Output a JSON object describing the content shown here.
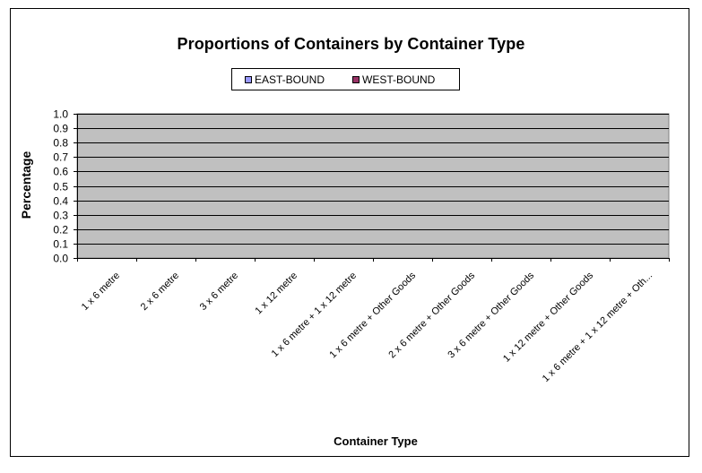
{
  "chart_data": {
    "type": "bar",
    "title": "Proportions of Containers by Container Type",
    "xlabel": "Container Type",
    "ylabel": "Percentage",
    "ylim": [
      0,
      1
    ],
    "yticks": [
      "0.0",
      "0.1",
      "0.2",
      "0.3",
      "0.4",
      "0.5",
      "0.6",
      "0.7",
      "0.8",
      "0.9",
      "1.0"
    ],
    "grid": true,
    "legend_position": "top",
    "categories": [
      "1 x 6 metre",
      "2 x 6 metre",
      "3 x 6 metre",
      "1 x 12 metre",
      "1 x 6 metre + 1 x 12 metre",
      "1 x 6 metre + Other Goods",
      "2 x 6 metre + Other Goods",
      "3 x 6 metre + Other Goods",
      "1 x 12 metre + Other Goods",
      "1 x 6 metre + 1 x 12 metre + Oth..."
    ],
    "series": [
      {
        "name": "EAST-BOUND",
        "color": "#9999ff",
        "values": [
          0,
          0,
          0,
          0,
          0,
          0,
          0,
          0,
          0,
          0
        ]
      },
      {
        "name": "WEST-BOUND",
        "color": "#993366",
        "values": [
          0,
          0,
          0,
          0,
          0,
          0,
          0,
          0,
          0,
          0
        ]
      }
    ],
    "plot_background": "#c0c0c0"
  }
}
